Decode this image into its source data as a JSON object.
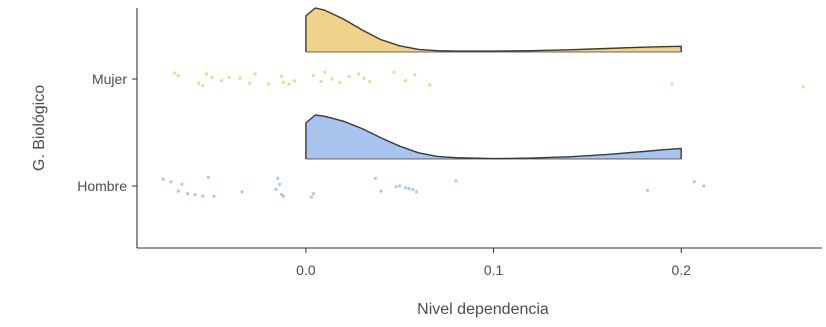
{
  "chart_data": {
    "type": "raincloud",
    "xlabel": "Nivel dependencia",
    "ylabel": "G. Biológico",
    "xlim": [
      -0.09,
      0.275
    ],
    "x_ticks": [
      0.0,
      0.1,
      0.2
    ],
    "x_tick_labels": [
      "0.0",
      "0.1",
      "0.2"
    ],
    "categories": [
      "Hombre",
      "Mujer"
    ],
    "grid": false,
    "legend": "none",
    "series": [
      {
        "name": "Hombre",
        "color": "#a9c4ef",
        "density": {
          "x": [
            0.0,
            0.005,
            0.01,
            0.02,
            0.03,
            0.04,
            0.05,
            0.06,
            0.07,
            0.08,
            0.1,
            0.12,
            0.14,
            0.16,
            0.18,
            0.19,
            0.2
          ],
          "y": [
            0.82,
            1.0,
            0.97,
            0.86,
            0.69,
            0.48,
            0.29,
            0.14,
            0.06,
            0.03,
            0.01,
            0.02,
            0.05,
            0.1,
            0.17,
            0.21,
            0.24
          ]
        },
        "points": [
          {
            "x": -0.076,
            "y": 0.08
          },
          {
            "x": -0.072,
            "y": 0.05
          },
          {
            "x": -0.068,
            "y": -0.06
          },
          {
            "x": -0.066,
            "y": 0.02
          },
          {
            "x": -0.063,
            "y": -0.09
          },
          {
            "x": -0.059,
            "y": -0.1
          },
          {
            "x": -0.055,
            "y": -0.12
          },
          {
            "x": -0.052,
            "y": 0.1
          },
          {
            "x": -0.049,
            "y": -0.12
          },
          {
            "x": -0.034,
            "y": -0.07
          },
          {
            "x": -0.015,
            "y": 0.09
          },
          {
            "x": -0.014,
            "y": 0.02
          },
          {
            "x": -0.016,
            "y": -0.04
          },
          {
            "x": -0.012,
            "y": -0.12
          },
          {
            "x": -0.013,
            "y": -0.1
          },
          {
            "x": 0.003,
            "y": -0.13
          },
          {
            "x": 0.004,
            "y": -0.09
          },
          {
            "x": 0.037,
            "y": 0.09
          },
          {
            "x": 0.04,
            "y": -0.06
          },
          {
            "x": 0.048,
            "y": -0.01
          },
          {
            "x": 0.05,
            "y": 0.0
          },
          {
            "x": 0.053,
            "y": -0.02
          },
          {
            "x": 0.055,
            "y": -0.03
          },
          {
            "x": 0.057,
            "y": -0.04
          },
          {
            "x": 0.059,
            "y": -0.07
          },
          {
            "x": 0.08,
            "y": 0.06
          },
          {
            "x": 0.182,
            "y": -0.05
          },
          {
            "x": 0.207,
            "y": 0.05
          },
          {
            "x": 0.212,
            "y": 0.0
          }
        ]
      },
      {
        "name": "Mujer",
        "color": "#f0d38a",
        "density": {
          "x": [
            0.0,
            0.005,
            0.01,
            0.02,
            0.03,
            0.04,
            0.05,
            0.06,
            0.07,
            0.08,
            0.1,
            0.12,
            0.14,
            0.16,
            0.18,
            0.19,
            0.2
          ],
          "y": [
            0.82,
            1.0,
            0.95,
            0.75,
            0.5,
            0.28,
            0.14,
            0.06,
            0.03,
            0.02,
            0.02,
            0.03,
            0.05,
            0.08,
            0.11,
            0.12,
            0.13
          ]
        },
        "points": [
          {
            "x": -0.07,
            "y": 0.07
          },
          {
            "x": -0.068,
            "y": 0.04
          },
          {
            "x": -0.057,
            "y": -0.05
          },
          {
            "x": -0.055,
            "y": -0.08
          },
          {
            "x": -0.053,
            "y": 0.06
          },
          {
            "x": -0.05,
            "y": 0.02
          },
          {
            "x": -0.045,
            "y": -0.02
          },
          {
            "x": -0.041,
            "y": 0.02
          },
          {
            "x": -0.035,
            "y": 0.01
          },
          {
            "x": -0.03,
            "y": -0.05
          },
          {
            "x": -0.027,
            "y": 0.06
          },
          {
            "x": -0.02,
            "y": -0.06
          },
          {
            "x": -0.013,
            "y": 0.03
          },
          {
            "x": -0.012,
            "y": -0.04
          },
          {
            "x": -0.009,
            "y": -0.06
          },
          {
            "x": -0.006,
            "y": -0.02
          },
          {
            "x": 0.004,
            "y": 0.04
          },
          {
            "x": 0.008,
            "y": -0.03
          },
          {
            "x": 0.01,
            "y": 0.08
          },
          {
            "x": 0.014,
            "y": 0.0
          },
          {
            "x": 0.018,
            "y": -0.04
          },
          {
            "x": 0.023,
            "y": 0.03
          },
          {
            "x": 0.028,
            "y": 0.06
          },
          {
            "x": 0.031,
            "y": 0.01
          },
          {
            "x": 0.034,
            "y": -0.03
          },
          {
            "x": 0.047,
            "y": 0.08
          },
          {
            "x": 0.053,
            "y": -0.02
          },
          {
            "x": 0.058,
            "y": 0.05
          },
          {
            "x": 0.066,
            "y": -0.07
          },
          {
            "x": 0.195,
            "y": -0.06
          },
          {
            "x": 0.265,
            "y": -0.09
          }
        ]
      }
    ]
  }
}
